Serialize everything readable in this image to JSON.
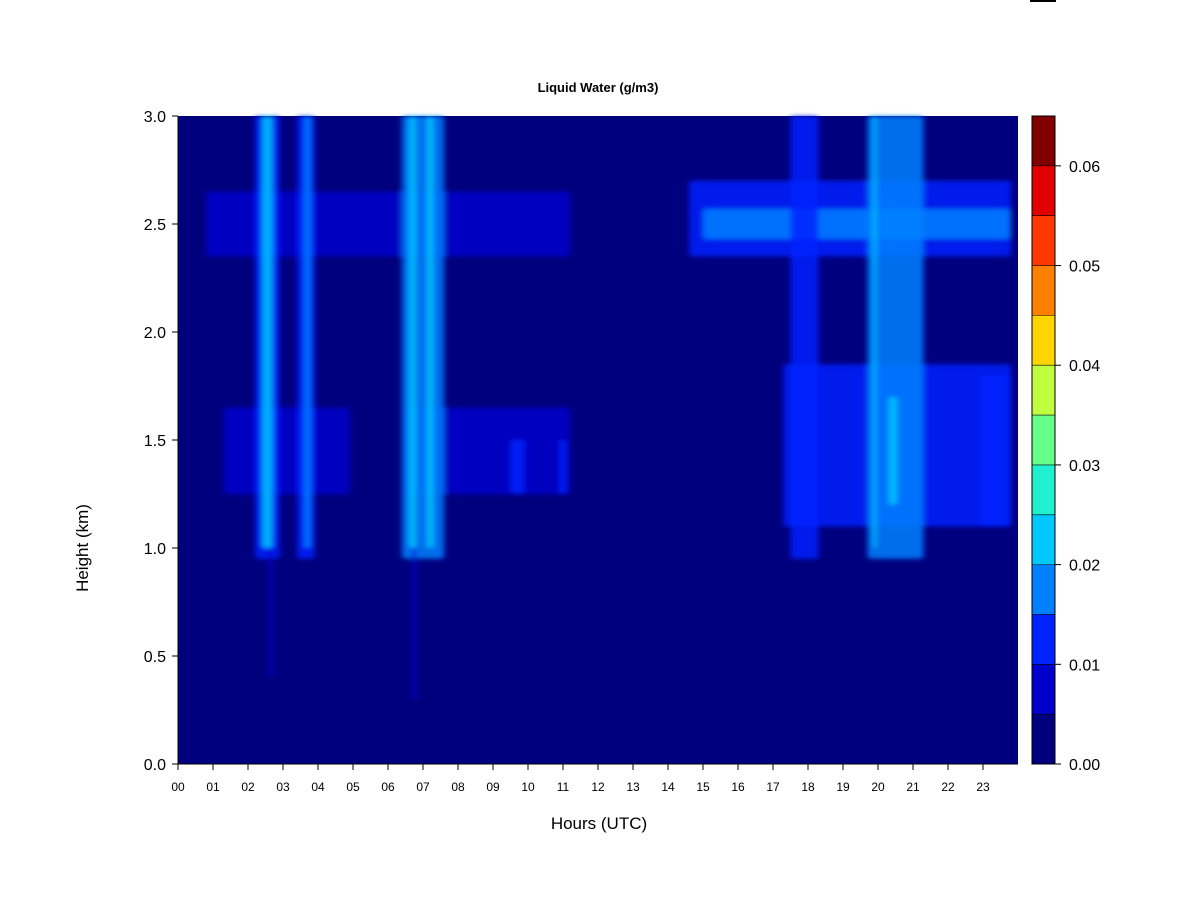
{
  "chart_data": {
    "type": "heatmap",
    "title": "Liquid Water (g/m3)",
    "xlabel": "Hours (UTC)",
    "ylabel": "Height (km)",
    "xlim": [
      0,
      24
    ],
    "ylim": [
      0,
      3.0
    ],
    "x_ticks": [
      "00",
      "01",
      "02",
      "03",
      "04",
      "05",
      "06",
      "07",
      "08",
      "09",
      "10",
      "11",
      "12",
      "13",
      "14",
      "15",
      "16",
      "17",
      "18",
      "19",
      "20",
      "21",
      "22",
      "23"
    ],
    "y_ticks": [
      "0.0",
      "0.5",
      "1.0",
      "1.5",
      "2.0",
      "2.5",
      "3.0"
    ],
    "y_tick_values": [
      0,
      0.5,
      1.0,
      1.5,
      2.0,
      2.5,
      3.0
    ],
    "background_color": "#00007f",
    "colorbar": {
      "levels": [
        0,
        0.005,
        0.01,
        0.015,
        0.02,
        0.025,
        0.03,
        0.035,
        0.04,
        0.045,
        0.05,
        0.055,
        0.06,
        0.065
      ],
      "colors": [
        "#00007f",
        "#0000cc",
        "#0022ff",
        "#0080ff",
        "#00c8ff",
        "#20f0d0",
        "#66ff88",
        "#c0ff40",
        "#ffd500",
        "#ff8000",
        "#ff3800",
        "#e00000",
        "#800000"
      ],
      "tick_labels": [
        "0.00",
        "0.01",
        "0.02",
        "0.03",
        "0.04",
        "0.05",
        "0.06"
      ],
      "tick_values": [
        0,
        0.01,
        0.02,
        0.03,
        0.04,
        0.05,
        0.06
      ]
    },
    "cloud_patches": [
      {
        "x0": 0.8,
        "x1": 11.2,
        "y0": 2.35,
        "y1": 2.65,
        "value": 0.009
      },
      {
        "x0": 14.6,
        "x1": 23.8,
        "y0": 2.35,
        "y1": 2.7,
        "value": 0.011
      },
      {
        "x0": 15.0,
        "x1": 23.8,
        "y0": 2.43,
        "y1": 2.57,
        "value": 0.015
      },
      {
        "x0": 1.3,
        "x1": 4.9,
        "y0": 1.25,
        "y1": 1.65,
        "value": 0.009
      },
      {
        "x0": 6.4,
        "x1": 11.2,
        "y0": 1.25,
        "y1": 1.65,
        "value": 0.009
      },
      {
        "x0": 17.3,
        "x1": 23.8,
        "y0": 1.1,
        "y1": 1.85,
        "value": 0.012
      },
      {
        "x0": 2.2,
        "x1": 2.9,
        "y0": 0.95,
        "y1": 3.0,
        "value": 0.014
      },
      {
        "x0": 3.4,
        "x1": 3.9,
        "y0": 0.95,
        "y1": 3.0,
        "value": 0.013
      },
      {
        "x0": 6.4,
        "x1": 7.6,
        "y0": 0.95,
        "y1": 3.0,
        "value": 0.015
      },
      {
        "x0": 17.5,
        "x1": 18.3,
        "y0": 0.95,
        "y1": 3.0,
        "value": 0.011
      },
      {
        "x0": 19.7,
        "x1": 21.3,
        "y0": 0.95,
        "y1": 3.0,
        "value": 0.016
      },
      {
        "x0": 22.9,
        "x1": 23.8,
        "y0": 1.1,
        "y1": 1.8,
        "value": 0.014
      },
      {
        "x0": 2.4,
        "x1": 2.7,
        "y0": 1.0,
        "y1": 3.0,
        "value": 0.021
      },
      {
        "x0": 3.6,
        "x1": 3.8,
        "y0": 1.0,
        "y1": 3.0,
        "value": 0.019
      },
      {
        "x0": 6.6,
        "x1": 6.8,
        "y0": 1.0,
        "y1": 3.0,
        "value": 0.02
      },
      {
        "x0": 7.1,
        "x1": 7.3,
        "y0": 1.0,
        "y1": 3.0,
        "value": 0.021
      },
      {
        "x0": 19.85,
        "x1": 19.95,
        "y0": 1.0,
        "y1": 3.0,
        "value": 0.021
      },
      {
        "x0": 20.3,
        "x1": 20.55,
        "y0": 1.2,
        "y1": 1.7,
        "value": 0.022
      },
      {
        "x0": 2.6,
        "x1": 2.7,
        "y0": 0.4,
        "y1": 1.0,
        "value": 0.006
      },
      {
        "x0": 6.7,
        "x1": 6.8,
        "y0": 0.3,
        "y1": 1.0,
        "value": 0.006
      },
      {
        "x0": 9.5,
        "x1": 9.9,
        "y0": 1.25,
        "y1": 1.5,
        "value": 0.01
      },
      {
        "x0": 10.9,
        "x1": 11.1,
        "y0": 1.25,
        "y1": 1.5,
        "value": 0.011
      }
    ]
  }
}
